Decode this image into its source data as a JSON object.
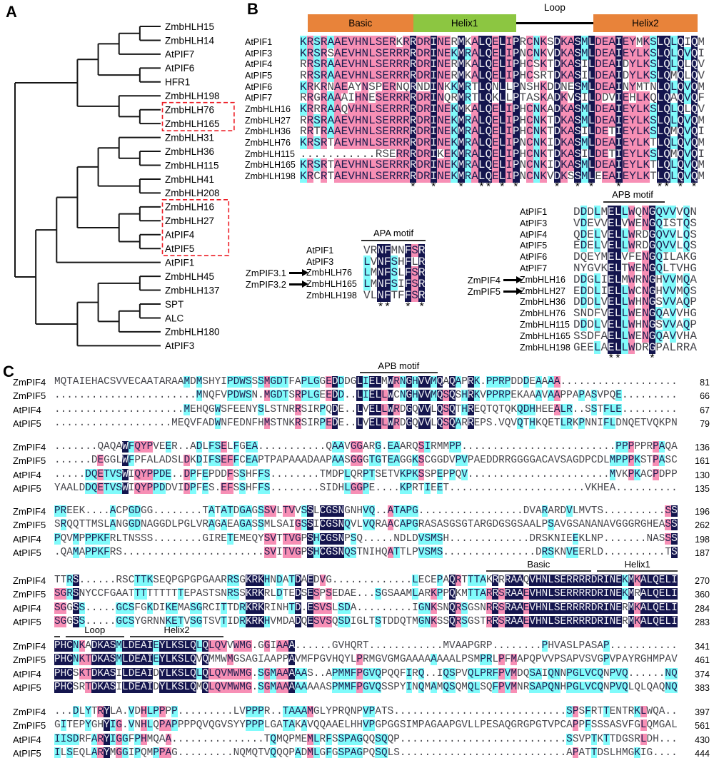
{
  "colors": {
    "identical_bg": "#14154E",
    "high_similarity_bg": "#F78FB5",
    "low_similarity_bg": "#80FBFB",
    "bar_orange": "#E8833A",
    "bar_green": "#8CC641",
    "box_red": "#EC1C24",
    "tree_line": "#161616"
  },
  "panel_a": {
    "label": "A",
    "tree": [
      [
        [
          [
            [
              "ZmbHLH15",
              "ZmbHLH14"
            ],
            "AtPIF7"
          ],
          [
            "AtPIF6",
            "HFR1"
          ]
        ],
        [
          "ZmbHLH198",
          [
            "ZmbHLH76",
            "ZmbHLH165"
          ]
        ]
      ],
      [
        [
          [
            [
              [
                "ZmbHLH31",
                [
                  "ZmbHLH36",
                  "ZmbHLH115"
                ]
              ],
              [
                "ZmbHLH41",
                "ZmbHLH208"
              ]
            ],
            [
              [
                "ZmbHLH16",
                "ZmbHLH27"
              ],
              [
                "AtPIF4",
                "AtPIF5"
              ]
            ]
          ],
          "AtPIF1"
        ],
        [
          [
            [
              "ZmbHLH45",
              "ZmbHLH137"
            ],
            [
              [
                "SPT",
                "ALC"
              ],
              "ZmbHLH180"
            ]
          ],
          "AtPIF3"
        ]
      ]
    ],
    "boxed_groups": [
      [
        "ZmbHLH76",
        "ZmbHLH165"
      ],
      [
        "ZmbHLH16",
        "ZmbHLH27",
        "AtPIF4",
        "AtPIF5"
      ]
    ]
  },
  "panel_b": {
    "label": "B",
    "domains": [
      {
        "label": "Basic",
        "type": "bar",
        "color": "#E8833A",
        "from": 0.019,
        "to": 0.278
      },
      {
        "label": "Helix1",
        "type": "bar",
        "color": "#8CC641",
        "from": 0.278,
        "to": 0.53
      },
      {
        "label": "Loop",
        "type": "line",
        "from": 0.53,
        "to": 0.72
      },
      {
        "label": "Helix2",
        "type": "bar",
        "color": "#E8833A",
        "from": 0.72,
        "to": 0.975
      }
    ],
    "rows": [
      {
        "name": "AtPIF1",
        "seq": "KRSRAAEVHNLSERKRRDRINERMKALQELIPRCNKSDKASMLDEAIEYMKSLQLQIQM"
      },
      {
        "name": "AtPIF3",
        "seq": "KRSRSAEVHNLSERRRRDRINEKMRALQELIPNCNKVDKASMLDEAIEYLKSLQLQVQI"
      },
      {
        "name": "AtPIF4",
        "seq": "RRSRAAEVHNLSERRRRDRINERMKALQELIPHCSKTDKASILDEAIDYLKSLQLQLQV"
      },
      {
        "name": "AtPIF5",
        "seq": "RRSRAAEVHNLSERRRRDRINERMKALQELIPHCSRTDKASILDEAIDYLKSLQMQLQV"
      },
      {
        "name": "AtPIF6",
        "seq": "KRKRNAEAYNSPERNQRNDINKKMRTLQNLLPNSHKDDNESMLDEAINYMTNLQLQVQM"
      },
      {
        "name": "AtPIF7",
        "seq": "RRGRAAAIHNESERRRRDRINQRMRTLQKLLPTASKADKVSILDDVIEHLKQLQAQVQF"
      },
      {
        "name": "ZmbHLH16",
        "seq": "KRRRAAQVHNLSERRRRDRINEKMKALQELIPHCNKADKASMLDEAIEYLKSLQLQLQV"
      },
      {
        "name": "ZmbHLH27",
        "seq": "RRSRAAEVHNLSERRRRDRINEKMRALQELIPHCNKTDKASMLDEAIEYLKSLQLQVQM"
      },
      {
        "name": "ZmbHLH36",
        "seq": "RRTRAAEVHNLSERRRRDRINEKMRALQELIPHCNKTDKASILDETIEYLKSLQMQVQI"
      },
      {
        "name": "ZmbHLH76",
        "seq": "KRSRTAEVHNLSERRRRDRINEKMRALQELIPNCNKIDKASMLDEAIEYLKTLQLQVQM"
      },
      {
        "name": "ZmbHLH115",
        "seq": "...........RSERRRDRIKEKMRALQELIPHCNKTDKASILDETIEYLKSLQMQVQI"
      },
      {
        "name": "ZmbHLH165",
        "seq": "KRSRTAEVHNLSERRRRDRINEKMRALQELIPNCNKIDKASMLDEAIEYLKTLQLQVQM"
      },
      {
        "name": "ZmbHLH198",
        "seq": "KRCRTAEVHNLSERRRRDRINEKMRALQELIPNCNKVDKSSMLEEAIEYLKTLQLQVQM"
      }
    ],
    "apa": {
      "title": "APA motif",
      "rows": [
        {
          "name": "AtPIF1",
          "seq": "VRNFMNFSR"
        },
        {
          "name": "AtPIF3",
          "seq": "LVNFSHFLR"
        },
        {
          "name": "ZmbHLH76",
          "seq": "LMNFSLFSR",
          "arrow": "ZmPIF3.1"
        },
        {
          "name": "ZmbHLH165",
          "seq": "LMNFSIFSR",
          "arrow": "ZmPIF3.2"
        },
        {
          "name": "ZmbHLH198",
          "seq": "VLNFTFFSR"
        }
      ]
    },
    "apb": {
      "title": "APB motif",
      "rows": [
        {
          "name": "AtPIF1",
          "seq": "DDDLMELLWQNGQVVVQN"
        },
        {
          "name": "AtPIF3",
          "seq": "VDEVVELVWENGQISTQS"
        },
        {
          "name": "AtPIF4",
          "seq": "QDELVELLWRDGQVVLQS"
        },
        {
          "name": "AtPIF5",
          "seq": "EDELVELLWRDGQVVLQS"
        },
        {
          "name": "AtPIF6",
          "seq": "DQEYMELVFENGQILAKG"
        },
        {
          "name": "AtPIF7",
          "seq": "NYGVKELTWENGQLTVHG"
        },
        {
          "name": "ZmbHLH16",
          "seq": "DDGLIELMWRNGHVVMQA",
          "arrow": "ZmPIF4"
        },
        {
          "name": "ZmbHLH27",
          "seq": "EDDLIELLWCNGHVVMQS",
          "arrow": "ZmPIF5"
        },
        {
          "name": "ZmbHLH36",
          "seq": "DDDLVELLWHNGSVVAQP"
        },
        {
          "name": "ZmbHLH76",
          "seq": "SNDFVELLWENGQAVVHG"
        },
        {
          "name": "ZmbHLH115",
          "seq": "DDDLVELLWHNGSVVAQP"
        },
        {
          "name": "ZmbHLH165",
          "seq": "SSDFAELLWENGQAVVHA"
        },
        {
          "name": "ZmbHLH198",
          "seq": "GEELAELLWDRGPALRRA"
        }
      ]
    }
  },
  "panel_c": {
    "label": "C",
    "blocks": [
      {
        "headers": [
          {
            "label": "APB motif",
            "from": 0.49,
            "to": 0.615
          }
        ],
        "rows": [
          {
            "name": "ZmPIF4",
            "num": 81,
            "seq": "MQTAIEHACSVVECAATARAAMDMSHYIPDWSSSMGDTFAPLGGEDDDGLIELMWRNGHVVMQAQAPRK.PPRPDDDEAAAA..................."
          },
          {
            "name": "ZmPIF5",
            "num": 66,
            "seq": ".......................MNQFVPDWSN.MGDTSRPLGEEDD..LIELLWCNGHVVMQSQSHRKVPPRPEKAAAVAAPPAPASVPQE........."
          },
          {
            "name": "AtPIF4",
            "num": 67,
            "seq": ".....................MEHQGWSFEENYSLSTNRRSIRPQDE..LVELLWRDGQVVLQSQTHREQTQTQKQDHHEEALR..SSTFLE........."
          },
          {
            "name": "AtPIF5",
            "num": 79,
            "seq": "...................MEQVFADWNFEDNFHMSTNKRSIRPEDE..LVELLWRDGQVVLQSQARREPS.VQVQTHKQETLRKPNNIFLDNQETVQKPN"
          }
        ]
      },
      {
        "rows": [
          {
            "name": "ZmPIF4",
            "num": 136,
            "seq": ".......QAQAWFQYPVEER..ADLFSELFGEA...........QAAVGGARG.EAARQSIRMMPP.........................PPPPPRPAQA"
          },
          {
            "name": "ZmPIF5",
            "num": 161,
            "seq": "......DEGGLWFPFALADSLDKDIFSEFFCEAPTPAPAAADAAPAASGGGTGTEAGGKSCGGDVPVPAEDDRRGGGGACAVSAGDPCDLMPPPKSTPASC"
          },
          {
            "name": "AtPIF4",
            "num": 130,
            "seq": ".....DQETVSWIQYPPDE..DPFEPDDFSSHFFS........TMDPLQRPTSETVKPKSSPEPPQV.......................MVKPKACPDPP"
          },
          {
            "name": "AtPIF5",
            "num": 135,
            "seq": "YAALDDQETVSWIQYPPDDVIDPFES.EFSSHFFS........SIDHLGGPE....KPRTIEET......................VKHEA.........."
          }
        ]
      },
      {
        "rows": [
          {
            "name": "ZmPIF4",
            "num": 196,
            "seq": "PREEK....ACPGDGG........TATATDGAGSSVLTVVSSLCGSNGNHVQ..ATAPG.................DVARARDVLMVTS..........SS"
          },
          {
            "name": "ZmPIF5",
            "num": 262,
            "seq": "SRQQTTMSLANGGDNAGGDLPGLVRAGAEAGASSMLSAIGSSICGSNQVLVQRAACAPGRASASGSGTARGDGSGSAALPSAVGSANANAVGGGRGHEASS"
          },
          {
            "name": "AtPIF4",
            "num": 198,
            "seq": "PQVMPPPKFRLTNSSS........GIRETEMEQYSVTTVGPSHCGSNPSQ.....NDLDVSMSH.............DRSKNIEEKLNP.......NASSS"
          },
          {
            "name": "AtPIF5",
            "num": 187,
            "seq": ".QAMAPPKFRS.......................SVITVGPSHCGSNQSTNIHQATTLPVSMS...............DRSKNVEERLD..........TS"
          }
        ]
      },
      {
        "headers": [
          {
            "label": "Basic",
            "from": 0.693,
            "to": 0.861
          },
          {
            "label": "Helix1",
            "from": 0.871,
            "to": 1.0
          }
        ],
        "rows": [
          {
            "name": "ZmPIF4",
            "num": 270,
            "seq": "TTRS......RSCTTKSEQPGPGPGAARRSGKRKHNDATDAEDVG.............LECEPAQRTTTAKRRRAAQVHNLSERRRRDRINEKMKALQELI"
          },
          {
            "name": "ZmPIF5",
            "num": 360,
            "seq": "SGRSNYCCFGAATTTTTTTTTEPASTSNRSSKRKRLDTEDSESPSEDAE...SGSAAMLARKPPQKMTTARRSRAAEVHNLSERRRRDRINEKMRALQELI"
          },
          {
            "name": "AtPIF4",
            "num": 284,
            "seq": "SGGSS.....GCSFGKDIKEMASGRCITTDRKRKRINHTD.ESVSLSDA.........IGNKSNQRSGSNRRSRAAEVHNLSERRRRDRINERMKALQELI"
          },
          {
            "name": "AtPIF5",
            "num": 283,
            "seq": "SGGSS.....GCSYGRNNKETVSGTSVTIDRKRKHVMDADQESVSQSDIGLTSTDDQTMGNKSSQRSGSTRRSRAAEVHNLSERRRRDRINERMKALQELI"
          }
        ]
      },
      {
        "headers": [
          {
            "label": "",
            "from": 0.0,
            "to": 0.009
          },
          {
            "label": "Loop",
            "from": 0.018,
            "to": 0.112
          },
          {
            "label": "Helix2",
            "from": 0.121,
            "to": 0.272
          }
        ],
        "rows": [
          {
            "name": "ZmPIF4",
            "num": 341,
            "seq": "PHCNKADKASMLDEAIEYLKSLQLQLQVVWMG.GGIAAA......GVHQRT............MVAAPGRP........PHVASLPASAP..........."
          },
          {
            "name": "ZmPIF5",
            "num": 461,
            "seq": "PHCNKTDKASMLDEAIEYLKSLQVQMMWMGSAGIAAPPAVMFPGVHQYLPRMGVGMGAAAAAAAALPSMPRLPFMAPQPVVPSAPVSVGPVPAYRGHMPAV"
          },
          {
            "name": "AtPIF4",
            "num": 374,
            "seq": "PHCSKTDKASILDEAIDYLKSLQLQLQVMWMG.SGMAAAAAS..APMMFPGVQPQQFIRQ..IQSPVQLPRFPVMDQSAIQNNPGLVCQNPVQ......NQ"
          },
          {
            "name": "AtPIF5",
            "num": 383,
            "seq": "PHCSRTDKASILDEAIDYLKSLQMQLQVMWMG.SGMAAAAAAAASPMMFPGVQSSPYINQMAMQSQMQLSQFPVMNRSAPQNHPGLVCQNPVQLQLQAQNQ"
          }
        ]
      },
      {
        "rows": [
          {
            "name": "ZmPIF4",
            "num": 397,
            "seq": "...DLYTRYLA.VDHLPPPP.........LVPPPR..TAAAMGLYPRQNPVPATS............................SPSFRTTENTRKLWQA.."
          },
          {
            "name": "ZmPIF5",
            "num": 561,
            "seq": "GITEPYGHYIG.VNHLQPAPPPPQVQGVSYYPPPLGATAKAVQQAAELHHVPGPGGSIMPAGAAPGVLLPESAQGRGPGTVPCAPPFSSSASVFGLQMGAL"
          },
          {
            "name": "AtPIF4",
            "num": 430,
            "seq": "IISDRFARYIGGFPHMQAA...............TQMQPMEMLRFSSPAGQQSQQP...........................SSVPTKTTDGSRLDH..."
          },
          {
            "name": "AtPIF5",
            "num": 444,
            "seq": "ILSEQLARYMGGIPQMPPAG.........NQMQTVQQQPADMLGFGSPAGPQSQLS...........................APATTDSLHMGKIG...."
          }
        ]
      }
    ]
  }
}
